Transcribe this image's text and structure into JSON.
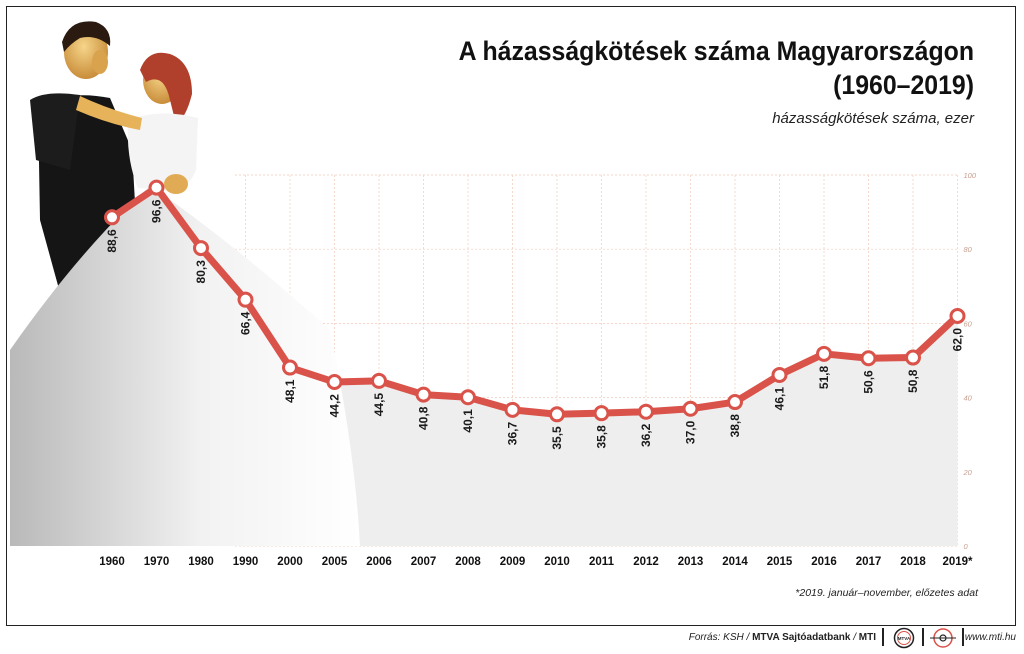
{
  "header": {
    "title_line1": "A házasságkötések száma Magyarországon",
    "title_line2": "(1960–2019)",
    "subtitle": "házasságkötések száma, ezer"
  },
  "footnote": "*2019. január–november, előzetes adat",
  "footer": {
    "source_prefix": "Forrás: KSH / ",
    "source_bold": "MTVA Sajtóadatbank",
    "source_sep": " / ",
    "source_mti": "MTI",
    "url": "www.mti.hu",
    "logo1_text": "MTVA"
  },
  "colors": {
    "line": "#d9534a",
    "area": "#eeeeee",
    "grid": "#f2c9b8",
    "axis_text": "#c8a090"
  },
  "chart_data": {
    "type": "line",
    "title": "A házasságkötések száma Magyarországon (1960–2019)",
    "ylabel": "házasságkötések száma, ezer",
    "categories": [
      "1960",
      "1970",
      "1980",
      "1990",
      "2000",
      "2005",
      "2006",
      "2007",
      "2008",
      "2009",
      "2010",
      "2011",
      "2012",
      "2013",
      "2014",
      "2015",
      "2016",
      "2017",
      "2018",
      "2019*"
    ],
    "values": [
      88.6,
      96.6,
      80.3,
      66.4,
      48.1,
      44.2,
      44.5,
      40.8,
      40.1,
      36.7,
      35.5,
      35.8,
      36.2,
      37.0,
      38.8,
      46.1,
      51.8,
      50.6,
      50.8,
      62.0
    ],
    "value_labels": [
      "88,6",
      "96,6",
      "80,3",
      "66,4",
      "48,1",
      "44,2",
      "44,5",
      "40,8",
      "40,1",
      "36,7",
      "35,5",
      "35,8",
      "36,2",
      "37,0",
      "38,8",
      "46,1",
      "51,8",
      "50,6",
      "50,8",
      "62,0"
    ],
    "yticks": [
      0,
      20,
      40,
      60,
      80,
      100
    ],
    "ylim": [
      0,
      100
    ],
    "grid": true,
    "axis_position": "right"
  }
}
